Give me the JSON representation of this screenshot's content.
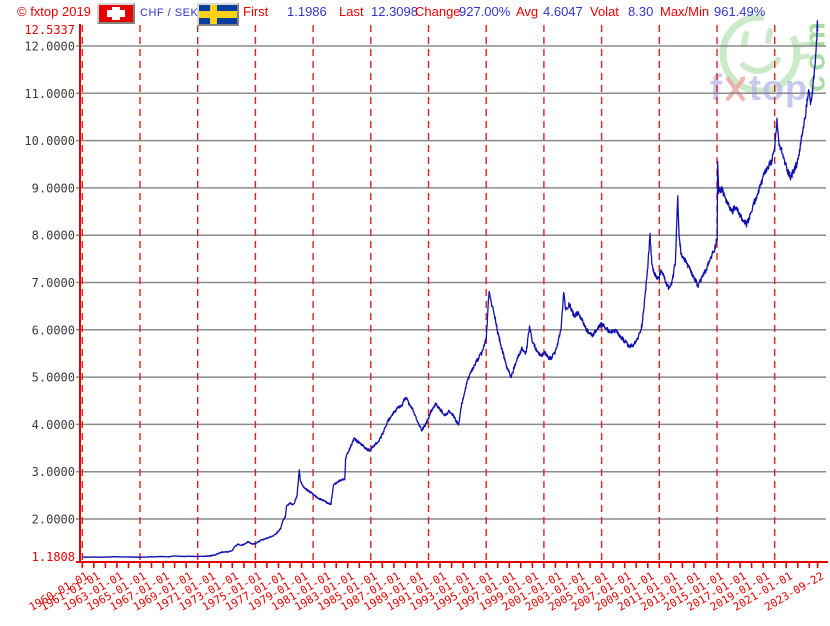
{
  "header": {
    "copyright": "© fxtop 2019",
    "pair": "CHF / SEK",
    "stats": [
      {
        "label": "First",
        "value": "1.1986"
      },
      {
        "label": "Last",
        "value": "12.3098"
      },
      {
        "label": "Change",
        "value": "927.00%"
      },
      {
        "label": "Avg",
        "value": "4.6047"
      },
      {
        "label": "Volat",
        "value": "8.30"
      },
      {
        "label": "Max/Min",
        "value": "961.49%"
      }
    ],
    "label_color": "#e80000",
    "value_color": "#3333cc"
  },
  "watermark": {
    "brand_parts": [
      "f",
      "x",
      "top"
    ],
    "tld": "com",
    "smiley_color": "#b7e2b7",
    "brand_color": "#b9bce9",
    "x_color": "#f0a0a0",
    "tld_color": "#9bd79b"
  },
  "chart_data": {
    "type": "line",
    "pair": "CHF / SEK",
    "x_start": 1960.0,
    "x_end": 2023.72,
    "y_min": 1.1808,
    "y_max": 12.5337,
    "y_min_label": "1.1808",
    "y_max_label": "12.5337",
    "y_ticks": [
      {
        "v": 12,
        "label": "12.0000"
      },
      {
        "v": 11,
        "label": "11.0000"
      },
      {
        "v": 10,
        "label": "10.0000"
      },
      {
        "v": 9,
        "label": "9.0000"
      },
      {
        "v": 8,
        "label": "8.0000"
      },
      {
        "v": 7,
        "label": "7.0000"
      },
      {
        "v": 6,
        "label": "6.0000"
      },
      {
        "v": 5,
        "label": "5.0000"
      },
      {
        "v": 4,
        "label": "4.0000"
      },
      {
        "v": 3,
        "label": "3.0000"
      },
      {
        "v": 2,
        "label": "2.0000"
      }
    ],
    "x_labels": [
      {
        "t": 1960.0,
        "label": "1960-01-01"
      },
      {
        "t": 1961.0,
        "label": "1961-01-01"
      },
      {
        "t": 1963.0,
        "label": "1963-01-01"
      },
      {
        "t": 1965.0,
        "label": "1965-01-01"
      },
      {
        "t": 1967.0,
        "label": "1967-01-01"
      },
      {
        "t": 1969.0,
        "label": "1969-01-01"
      },
      {
        "t": 1971.0,
        "label": "1971-01-01"
      },
      {
        "t": 1973.0,
        "label": "1973-01-01"
      },
      {
        "t": 1975.0,
        "label": "1975-01-01"
      },
      {
        "t": 1977.0,
        "label": "1977-01-01"
      },
      {
        "t": 1979.0,
        "label": "1979-01-01"
      },
      {
        "t": 1981.0,
        "label": "1981-01-01"
      },
      {
        "t": 1983.0,
        "label": "1983-01-01"
      },
      {
        "t": 1985.0,
        "label": "1985-01-01"
      },
      {
        "t": 1987.0,
        "label": "1987-01-01"
      },
      {
        "t": 1989.0,
        "label": "1989-01-01"
      },
      {
        "t": 1991.0,
        "label": "1991-01-01"
      },
      {
        "t": 1993.0,
        "label": "1993-01-01"
      },
      {
        "t": 1995.0,
        "label": "1995-01-01"
      },
      {
        "t": 1997.0,
        "label": "1997-01-01"
      },
      {
        "t": 1999.0,
        "label": "1999-01-01"
      },
      {
        "t": 2001.0,
        "label": "2001-01-01"
      },
      {
        "t": 2003.0,
        "label": "2003-01-01"
      },
      {
        "t": 2005.0,
        "label": "2005-01-01"
      },
      {
        "t": 2007.0,
        "label": "2007-01-01"
      },
      {
        "t": 2009.0,
        "label": "2009-01-01"
      },
      {
        "t": 2011.0,
        "label": "2011-01-01"
      },
      {
        "t": 2013.0,
        "label": "2013-01-01"
      },
      {
        "t": 2015.0,
        "label": "2015-01-01"
      },
      {
        "t": 2017.0,
        "label": "2017-01-01"
      },
      {
        "t": 2019.0,
        "label": "2019-01-01"
      },
      {
        "t": 2021.0,
        "label": "2021-01-01"
      },
      {
        "t": 2023.72,
        "label": "2023-09-22"
      }
    ],
    "dashed_grid_years": [
      1960,
      1965,
      1970,
      1975,
      1980,
      1985,
      1990,
      1995,
      2000,
      2005,
      2010,
      2015,
      2020
    ],
    "colors": {
      "line": "#1212ad",
      "axis": "#e00000",
      "dashed_grid": "#e02020",
      "h_grid": "#8a8a8a"
    },
    "noise_pct": 0.8,
    "noise_seed": 9,
    "series": [
      {
        "name": "CHF/SEK",
        "points": [
          [
            1960.0,
            1.197
          ],
          [
            1960.5,
            1.193
          ],
          [
            1961.0,
            1.196
          ],
          [
            1961.5,
            1.192
          ],
          [
            1962.0,
            1.194
          ],
          [
            1962.5,
            1.198
          ],
          [
            1963.0,
            1.201
          ],
          [
            1963.5,
            1.196
          ],
          [
            1964.0,
            1.199
          ],
          [
            1964.5,
            1.195
          ],
          [
            1965.0,
            1.192
          ],
          [
            1965.5,
            1.196
          ],
          [
            1966.0,
            1.199
          ],
          [
            1966.5,
            1.203
          ],
          [
            1967.0,
            1.206
          ],
          [
            1967.4,
            1.198
          ],
          [
            1967.9,
            1.218
          ],
          [
            1968.3,
            1.212
          ],
          [
            1968.8,
            1.208
          ],
          [
            1969.3,
            1.212
          ],
          [
            1969.8,
            1.207
          ],
          [
            1970.3,
            1.21
          ],
          [
            1970.8,
            1.215
          ],
          [
            1971.2,
            1.225
          ],
          [
            1971.6,
            1.245
          ],
          [
            1971.9,
            1.285
          ],
          [
            1972.2,
            1.3
          ],
          [
            1972.6,
            1.305
          ],
          [
            1973.0,
            1.33
          ],
          [
            1973.2,
            1.41
          ],
          [
            1973.5,
            1.465
          ],
          [
            1973.8,
            1.44
          ],
          [
            1974.1,
            1.48
          ],
          [
            1974.4,
            1.52
          ],
          [
            1974.7,
            1.465
          ],
          [
            1975.0,
            1.48
          ],
          [
            1975.4,
            1.54
          ],
          [
            1975.8,
            1.575
          ],
          [
            1976.2,
            1.61
          ],
          [
            1976.6,
            1.65
          ],
          [
            1976.9,
            1.72
          ],
          [
            1977.2,
            1.8
          ],
          [
            1977.35,
            1.95
          ],
          [
            1977.6,
            2.05
          ],
          [
            1977.7,
            2.28
          ],
          [
            1978.0,
            2.33
          ],
          [
            1978.3,
            2.3
          ],
          [
            1978.6,
            2.48
          ],
          [
            1978.8,
            3.02
          ],
          [
            1978.9,
            2.82
          ],
          [
            1979.1,
            2.7
          ],
          [
            1979.4,
            2.62
          ],
          [
            1979.8,
            2.56
          ],
          [
            1980.1,
            2.5
          ],
          [
            1980.5,
            2.43
          ],
          [
            1980.9,
            2.39
          ],
          [
            1981.2,
            2.34
          ],
          [
            1981.55,
            2.31
          ],
          [
            1981.75,
            2.7
          ],
          [
            1982.0,
            2.76
          ],
          [
            1982.4,
            2.82
          ],
          [
            1982.75,
            2.84
          ],
          [
            1982.82,
            3.28
          ],
          [
            1983.0,
            3.4
          ],
          [
            1983.3,
            3.56
          ],
          [
            1983.6,
            3.72
          ],
          [
            1983.8,
            3.64
          ],
          [
            1984.1,
            3.6
          ],
          [
            1984.5,
            3.5
          ],
          [
            1984.9,
            3.44
          ],
          [
            1985.3,
            3.56
          ],
          [
            1985.7,
            3.64
          ],
          [
            1986.1,
            3.84
          ],
          [
            1986.5,
            4.08
          ],
          [
            1986.9,
            4.22
          ],
          [
            1987.3,
            4.33
          ],
          [
            1987.7,
            4.4
          ],
          [
            1988.0,
            4.58
          ],
          [
            1988.3,
            4.44
          ],
          [
            1988.7,
            4.28
          ],
          [
            1989.0,
            4.08
          ],
          [
            1989.4,
            3.88
          ],
          [
            1989.8,
            4.02
          ],
          [
            1990.2,
            4.26
          ],
          [
            1990.6,
            4.43
          ],
          [
            1991.0,
            4.32
          ],
          [
            1991.4,
            4.18
          ],
          [
            1991.8,
            4.28
          ],
          [
            1992.2,
            4.16
          ],
          [
            1992.6,
            3.98
          ],
          [
            1992.87,
            4.42
          ],
          [
            1993.1,
            4.65
          ],
          [
            1993.4,
            4.95
          ],
          [
            1993.8,
            5.15
          ],
          [
            1994.2,
            5.35
          ],
          [
            1994.6,
            5.5
          ],
          [
            1995.0,
            5.8
          ],
          [
            1995.25,
            6.82
          ],
          [
            1995.45,
            6.55
          ],
          [
            1995.7,
            6.35
          ],
          [
            1996.0,
            5.95
          ],
          [
            1996.4,
            5.55
          ],
          [
            1996.8,
            5.2
          ],
          [
            1997.15,
            5.0
          ],
          [
            1997.5,
            5.25
          ],
          [
            1997.8,
            5.45
          ],
          [
            1998.1,
            5.6
          ],
          [
            1998.45,
            5.48
          ],
          [
            1998.75,
            6.06
          ],
          [
            1999.0,
            5.75
          ],
          [
            1999.3,
            5.6
          ],
          [
            1999.7,
            5.45
          ],
          [
            2000.1,
            5.5
          ],
          [
            2000.5,
            5.38
          ],
          [
            2000.9,
            5.48
          ],
          [
            2001.2,
            5.7
          ],
          [
            2001.5,
            6.05
          ],
          [
            2001.72,
            6.8
          ],
          [
            2001.9,
            6.4
          ],
          [
            2002.2,
            6.55
          ],
          [
            2002.6,
            6.3
          ],
          [
            2003.0,
            6.35
          ],
          [
            2003.4,
            6.15
          ],
          [
            2003.8,
            5.95
          ],
          [
            2004.2,
            5.88
          ],
          [
            2004.6,
            6.0
          ],
          [
            2005.0,
            6.12
          ],
          [
            2005.4,
            6.02
          ],
          [
            2005.8,
            5.95
          ],
          [
            2006.2,
            5.98
          ],
          [
            2006.6,
            5.85
          ],
          [
            2007.0,
            5.76
          ],
          [
            2007.4,
            5.64
          ],
          [
            2007.8,
            5.68
          ],
          [
            2008.2,
            5.85
          ],
          [
            2008.5,
            6.1
          ],
          [
            2008.8,
            6.8
          ],
          [
            2009.0,
            7.35
          ],
          [
            2009.2,
            7.98
          ],
          [
            2009.35,
            7.4
          ],
          [
            2009.6,
            7.15
          ],
          [
            2009.9,
            7.08
          ],
          [
            2010.2,
            7.25
          ],
          [
            2010.5,
            7.05
          ],
          [
            2010.8,
            6.88
          ],
          [
            2011.1,
            6.98
          ],
          [
            2011.4,
            7.45
          ],
          [
            2011.6,
            8.82
          ],
          [
            2011.72,
            7.95
          ],
          [
            2011.9,
            7.6
          ],
          [
            2012.2,
            7.48
          ],
          [
            2012.5,
            7.35
          ],
          [
            2012.8,
            7.18
          ],
          [
            2013.1,
            7.05
          ],
          [
            2013.4,
            6.92
          ],
          [
            2013.7,
            7.12
          ],
          [
            2014.0,
            7.23
          ],
          [
            2014.4,
            7.48
          ],
          [
            2014.8,
            7.72
          ],
          [
            2015.02,
            7.95
          ],
          [
            2015.05,
            9.52
          ],
          [
            2015.15,
            8.95
          ],
          [
            2015.4,
            8.98
          ],
          [
            2015.7,
            8.8
          ],
          [
            2016.0,
            8.62
          ],
          [
            2016.3,
            8.5
          ],
          [
            2016.6,
            8.58
          ],
          [
            2016.9,
            8.48
          ],
          [
            2017.2,
            8.32
          ],
          [
            2017.55,
            8.22
          ],
          [
            2017.9,
            8.42
          ],
          [
            2018.2,
            8.68
          ],
          [
            2018.5,
            8.85
          ],
          [
            2018.8,
            9.08
          ],
          [
            2019.1,
            9.28
          ],
          [
            2019.4,
            9.42
          ],
          [
            2019.7,
            9.56
          ],
          [
            2019.95,
            9.72
          ],
          [
            2020.2,
            10.42
          ],
          [
            2020.35,
            9.95
          ],
          [
            2020.6,
            9.78
          ],
          [
            2020.9,
            9.52
          ],
          [
            2021.15,
            9.35
          ],
          [
            2021.4,
            9.22
          ],
          [
            2021.65,
            9.38
          ],
          [
            2021.9,
            9.48
          ],
          [
            2022.1,
            9.7
          ],
          [
            2022.4,
            10.15
          ],
          [
            2022.7,
            10.6
          ],
          [
            2022.95,
            11.08
          ],
          [
            2023.1,
            10.78
          ],
          [
            2023.25,
            11.0
          ],
          [
            2023.4,
            11.35
          ],
          [
            2023.55,
            11.78
          ],
          [
            2023.65,
            12.15
          ],
          [
            2023.7,
            12.5
          ],
          [
            2023.72,
            12.31
          ]
        ]
      }
    ]
  }
}
